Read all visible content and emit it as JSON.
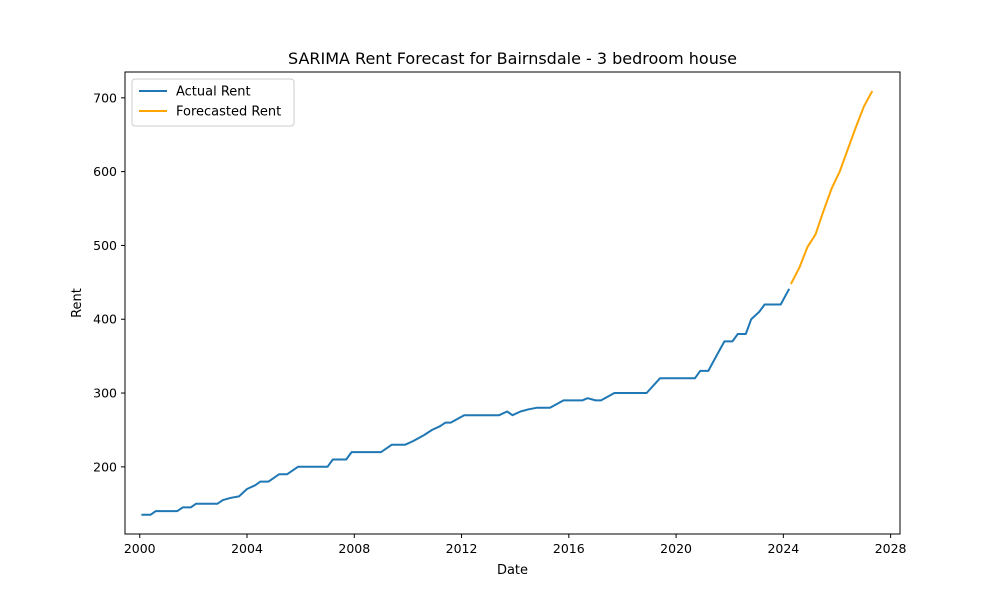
{
  "chart_data": {
    "type": "line",
    "title": "SARIMA Rent Forecast for Bairnsdale - 3 bedroom house",
    "xlabel": "Date",
    "ylabel": "Rent",
    "xlim": [
      1999.45,
      2028.35
    ],
    "ylim": [
      109,
      735
    ],
    "x_ticks": [
      2000,
      2004,
      2008,
      2012,
      2016,
      2020,
      2024,
      2028
    ],
    "y_ticks": [
      200,
      300,
      400,
      500,
      600,
      700
    ],
    "grid": false,
    "legend_position": "top-left",
    "series": [
      {
        "name": "Actual Rent",
        "color": "#1f77b4",
        "points": [
          [
            2000.1,
            135
          ],
          [
            2000.4,
            135
          ],
          [
            2000.6,
            140
          ],
          [
            2001.0,
            140
          ],
          [
            2001.4,
            140
          ],
          [
            2001.6,
            145
          ],
          [
            2001.9,
            145
          ],
          [
            2002.1,
            150
          ],
          [
            2002.5,
            150
          ],
          [
            2002.9,
            150
          ],
          [
            2003.1,
            155
          ],
          [
            2003.4,
            158
          ],
          [
            2003.7,
            160
          ],
          [
            2004.0,
            170
          ],
          [
            2004.3,
            175
          ],
          [
            2004.5,
            180
          ],
          [
            2004.8,
            180
          ],
          [
            2005.0,
            185
          ],
          [
            2005.2,
            190
          ],
          [
            2005.5,
            190
          ],
          [
            2005.9,
            200
          ],
          [
            2006.5,
            200
          ],
          [
            2007.0,
            200
          ],
          [
            2007.2,
            210
          ],
          [
            2007.7,
            210
          ],
          [
            2007.9,
            220
          ],
          [
            2008.5,
            220
          ],
          [
            2009.0,
            220
          ],
          [
            2009.4,
            230
          ],
          [
            2009.9,
            230
          ],
          [
            2010.2,
            235
          ],
          [
            2010.6,
            243
          ],
          [
            2010.9,
            250
          ],
          [
            2011.2,
            255
          ],
          [
            2011.4,
            260
          ],
          [
            2011.6,
            260
          ],
          [
            2011.9,
            266
          ],
          [
            2012.1,
            270
          ],
          [
            2012.6,
            270
          ],
          [
            2013.0,
            270
          ],
          [
            2013.4,
            270
          ],
          [
            2013.7,
            275
          ],
          [
            2013.9,
            270
          ],
          [
            2014.2,
            275
          ],
          [
            2014.5,
            278
          ],
          [
            2014.8,
            280
          ],
          [
            2015.1,
            280
          ],
          [
            2015.3,
            280
          ],
          [
            2015.8,
            290
          ],
          [
            2016.2,
            290
          ],
          [
            2016.5,
            290
          ],
          [
            2016.7,
            293
          ],
          [
            2017.0,
            290
          ],
          [
            2017.2,
            290
          ],
          [
            2017.7,
            300
          ],
          [
            2018.2,
            300
          ],
          [
            2018.6,
            300
          ],
          [
            2018.9,
            300
          ],
          [
            2019.4,
            320
          ],
          [
            2019.9,
            320
          ],
          [
            2020.3,
            320
          ],
          [
            2020.7,
            320
          ],
          [
            2020.9,
            330
          ],
          [
            2021.2,
            330
          ],
          [
            2021.5,
            350
          ],
          [
            2021.8,
            370
          ],
          [
            2022.1,
            370
          ],
          [
            2022.3,
            380
          ],
          [
            2022.6,
            380
          ],
          [
            2022.8,
            400
          ],
          [
            2023.1,
            410
          ],
          [
            2023.3,
            420
          ],
          [
            2023.6,
            420
          ],
          [
            2023.9,
            420
          ],
          [
            2024.2,
            440
          ]
        ]
      },
      {
        "name": "Forecasted Rent",
        "color": "#ffa500",
        "points": [
          [
            2024.3,
            449
          ],
          [
            2024.6,
            470
          ],
          [
            2024.9,
            498
          ],
          [
            2025.2,
            515
          ],
          [
            2025.5,
            547
          ],
          [
            2025.8,
            577
          ],
          [
            2026.1,
            600
          ],
          [
            2026.4,
            630
          ],
          [
            2026.7,
            660
          ],
          [
            2027.0,
            688
          ],
          [
            2027.3,
            708
          ]
        ]
      }
    ]
  }
}
